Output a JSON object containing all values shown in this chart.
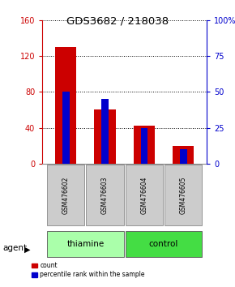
{
  "title": "GDS3682 / 218038",
  "samples": [
    "GSM476602",
    "GSM476603",
    "GSM476604",
    "GSM476605"
  ],
  "red_values": [
    130,
    60,
    42,
    20
  ],
  "blue_values_pct": [
    50,
    45,
    25,
    10
  ],
  "left_ylim": [
    0,
    160
  ],
  "right_ylim": [
    0,
    100
  ],
  "left_yticks": [
    0,
    40,
    80,
    120,
    160
  ],
  "right_yticks": [
    0,
    25,
    50,
    75,
    100
  ],
  "right_yticklabels": [
    "0",
    "25",
    "50",
    "75",
    "100%"
  ],
  "left_color": "#cc0000",
  "right_color": "#0000cc",
  "red_bar_width": 0.55,
  "blue_bar_width": 0.18,
  "groups": [
    {
      "label": "thiamine",
      "samples": [
        0,
        1
      ],
      "color": "#aaffaa"
    },
    {
      "label": "control",
      "samples": [
        2,
        3
      ],
      "color": "#44dd44"
    }
  ],
  "agent_label": "agent",
  "legend_red": "count",
  "legend_blue": "percentile rank within the sample",
  "label_area_color": "#cccccc"
}
